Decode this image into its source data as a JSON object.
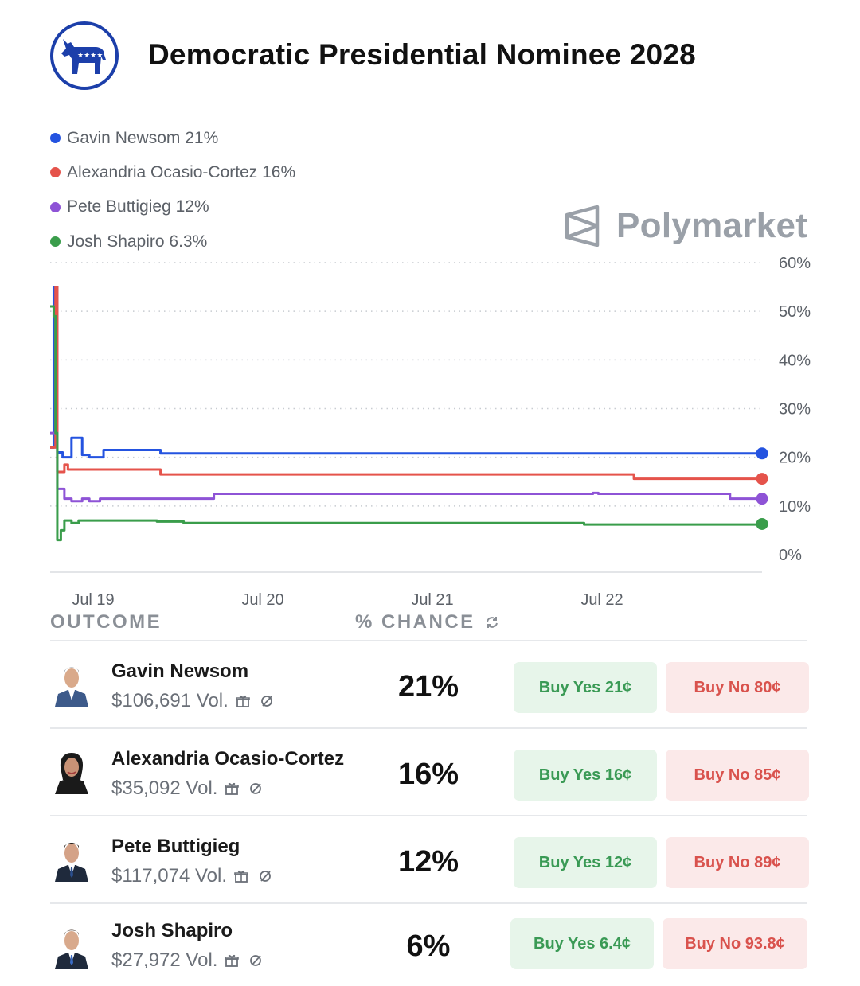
{
  "header": {
    "title": "Democratic Presidential Nominee 2028",
    "logo_icon": "democratic-donkey-icon"
  },
  "brand": {
    "name": "Polymarket",
    "icon": "polymarket-logo-icon"
  },
  "legend": [
    {
      "label": "Gavin Newsom 21%",
      "color": "#2453e0"
    },
    {
      "label": "Alexandria Ocasio-Cortez 16%",
      "color": "#e5534b"
    },
    {
      "label": "Pete Buttigieg 12%",
      "color": "#8e53d6"
    },
    {
      "label": "Josh Shapiro 6.3%",
      "color": "#3a9d4b"
    }
  ],
  "chart_data": {
    "type": "line",
    "y_ticks": [
      "60%",
      "50%",
      "40%",
      "30%",
      "20%",
      "10%",
      "0%"
    ],
    "ylim": [
      0,
      60
    ],
    "x_ticks": [
      "Jul 19",
      "Jul 20",
      "Jul 21",
      "Jul 22"
    ],
    "xlim": [
      0,
      4.0
    ],
    "grid": true,
    "legend_position": "top-left",
    "series": [
      {
        "name": "Gavin Newsom",
        "color": "#2453e0",
        "points": [
          [
            0,
            22
          ],
          [
            0.02,
            55
          ],
          [
            0.04,
            21
          ],
          [
            0.07,
            20
          ],
          [
            0.12,
            24
          ],
          [
            0.18,
            20.5
          ],
          [
            0.22,
            20
          ],
          [
            0.27,
            20
          ],
          [
            0.3,
            21.5
          ],
          [
            0.6,
            21.5
          ],
          [
            0.62,
            20.8
          ],
          [
            4.0,
            20.8
          ]
        ]
      },
      {
        "name": "Alexandria Ocasio-Cortez",
        "color": "#e5534b",
        "points": [
          [
            0,
            22
          ],
          [
            0.03,
            55
          ],
          [
            0.04,
            17
          ],
          [
            0.08,
            18.5
          ],
          [
            0.1,
            17.5
          ],
          [
            0.15,
            17.5
          ],
          [
            0.6,
            17.5
          ],
          [
            0.62,
            16.5
          ],
          [
            3.25,
            16.5
          ],
          [
            3.28,
            15.6
          ],
          [
            4.0,
            15.6
          ]
        ]
      },
      {
        "name": "Pete Buttigieg",
        "color": "#8e53d6",
        "points": [
          [
            0,
            25
          ],
          [
            0.03,
            25
          ],
          [
            0.04,
            13.5
          ],
          [
            0.08,
            11.5
          ],
          [
            0.12,
            11
          ],
          [
            0.18,
            11.5
          ],
          [
            0.22,
            11
          ],
          [
            0.28,
            11.5
          ],
          [
            0.6,
            11.5
          ],
          [
            0.9,
            11.5
          ],
          [
            0.92,
            12.5
          ],
          [
            3.02,
            12.5
          ],
          [
            3.05,
            12.7
          ],
          [
            3.08,
            12.5
          ],
          [
            3.8,
            12.5
          ],
          [
            3.82,
            11.5
          ],
          [
            4.0,
            11.5
          ]
        ]
      },
      {
        "name": "Josh Shapiro",
        "color": "#3a9d4b",
        "points": [
          [
            0,
            51
          ],
          [
            0.02,
            49
          ],
          [
            0.03,
            25
          ],
          [
            0.04,
            3
          ],
          [
            0.06,
            5
          ],
          [
            0.08,
            7
          ],
          [
            0.12,
            6.5
          ],
          [
            0.16,
            7
          ],
          [
            0.3,
            7
          ],
          [
            0.4,
            7
          ],
          [
            0.6,
            6.8
          ],
          [
            0.75,
            6.5
          ],
          [
            1.0,
            6.5
          ],
          [
            1.8,
            6.5
          ],
          [
            3.0,
            6.2
          ],
          [
            4.0,
            6.3
          ]
        ]
      }
    ]
  },
  "table": {
    "col_outcome": "OUTCOME",
    "col_chance": "% CHANCE",
    "rows": [
      {
        "name": "Gavin Newsom",
        "volume": "$106,691 Vol.",
        "chance": "21%",
        "buy_yes": "Buy Yes 21¢",
        "buy_no": "Buy No 80¢"
      },
      {
        "name": "Alexandria Ocasio-Cortez",
        "volume": "$35,092 Vol.",
        "chance": "16%",
        "buy_yes": "Buy Yes 16¢",
        "buy_no": "Buy No 85¢"
      },
      {
        "name": "Pete Buttigieg",
        "volume": "$117,074 Vol.",
        "chance": "12%",
        "buy_yes": "Buy Yes 12¢",
        "buy_no": "Buy No 89¢"
      },
      {
        "name": "Josh Shapiro",
        "volume": "$27,972 Vol.",
        "chance": "6%",
        "buy_yes": "Buy Yes 6.4¢",
        "buy_no": "Buy No 93.8¢"
      }
    ]
  }
}
